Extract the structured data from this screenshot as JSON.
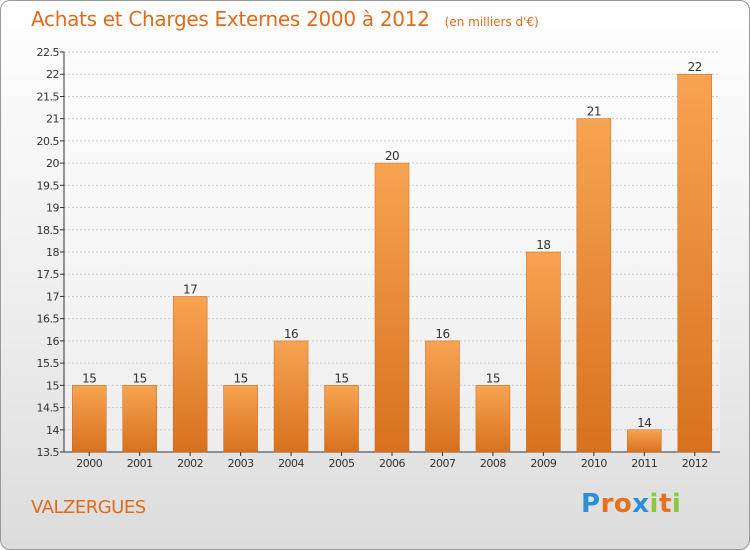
{
  "header": {
    "title": "Achats et Charges Externes 2000 à 2012",
    "unit_note": "(en milliers d'€)"
  },
  "footer": {
    "location": "VALZERGUES",
    "logo_letters": [
      {
        "ch": "P",
        "color": "#2a8fd8"
      },
      {
        "ch": "r",
        "color": "#e86f1b"
      },
      {
        "ch": "o",
        "color": "#e86f1b"
      },
      {
        "ch": "x",
        "color": "#2a8fd8"
      },
      {
        "ch": "i",
        "color": "#8cc83c"
      },
      {
        "ch": "t",
        "color": "#e86f1b"
      },
      {
        "ch": "i",
        "color": "#8cc83c"
      }
    ]
  },
  "colors": {
    "text_accent": "#e06b1a",
    "bar_top": "#f7a452",
    "bar_bottom": "#d8711e",
    "grid": "#cccccc",
    "axis": "#333333"
  },
  "chart_data": {
    "type": "bar",
    "categories": [
      "2000",
      "2001",
      "2002",
      "2003",
      "2004",
      "2005",
      "2006",
      "2007",
      "2008",
      "2009",
      "2010",
      "2011",
      "2012"
    ],
    "values": [
      15,
      15,
      17,
      15,
      16,
      15,
      20,
      16,
      15,
      18,
      21,
      14,
      22
    ],
    "data_labels": [
      "15",
      "15",
      "17",
      "15",
      "16",
      "15",
      "20",
      "16",
      "15",
      "18",
      "21",
      "14",
      "22"
    ],
    "title": "Achats et Charges Externes 2000 à 2012",
    "ylim": [
      13.5,
      22.5
    ],
    "yticks": [
      "13.5",
      "14",
      "14.5",
      "15",
      "15.5",
      "16",
      "16.5",
      "17",
      "17.5",
      "18",
      "18.5",
      "19",
      "19.5",
      "20",
      "20.5",
      "21",
      "21.5",
      "22",
      "22.5"
    ],
    "grid": true
  }
}
